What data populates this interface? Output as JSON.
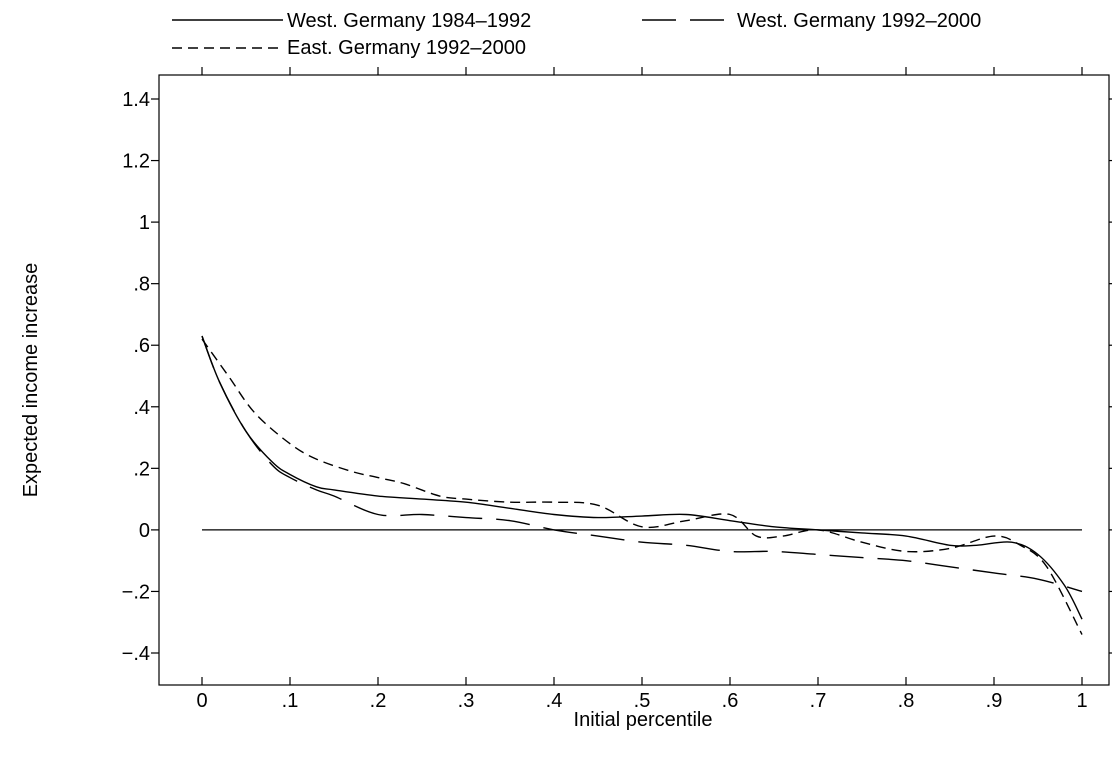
{
  "chart_data": {
    "type": "line",
    "xlabel": "Initial percentile",
    "ylabel": "Expected income increase",
    "xlim": [
      0,
      1
    ],
    "ylim": [
      -0.4,
      1.4
    ],
    "x_ticks": [
      0,
      0.1,
      0.2,
      0.3,
      0.4,
      0.5,
      0.6,
      0.7,
      0.8,
      0.9,
      1
    ],
    "x_tick_labels": [
      "0",
      ".1",
      ".2",
      ".3",
      ".4",
      ".5",
      ".6",
      ".7",
      ".8",
      ".9",
      "1"
    ],
    "y_ticks": [
      -0.4,
      -0.2,
      0,
      0.2,
      0.4,
      0.6,
      0.8,
      1,
      1.2,
      1.4
    ],
    "y_tick_labels": [
      "−.4",
      "−.2",
      "0",
      ".2",
      ".4",
      ".6",
      ".8",
      "1",
      "1.2",
      "1.4"
    ],
    "grid": false,
    "legend_position": "top",
    "reference_line_y": 0,
    "series": [
      {
        "name": "West. Germany 1984–1992",
        "dash": "solid",
        "x": [
          0,
          0.02,
          0.05,
          0.08,
          0.1,
          0.13,
          0.15,
          0.2,
          0.25,
          0.3,
          0.35,
          0.4,
          0.45,
          0.5,
          0.55,
          0.6,
          0.65,
          0.7,
          0.75,
          0.8,
          0.85,
          0.88,
          0.92,
          0.95,
          0.98,
          1.0
        ],
        "y": [
          0.63,
          0.48,
          0.32,
          0.22,
          0.18,
          0.14,
          0.13,
          0.11,
          0.1,
          0.09,
          0.07,
          0.05,
          0.04,
          0.045,
          0.05,
          0.03,
          0.01,
          0.0,
          -0.01,
          -0.02,
          -0.05,
          -0.05,
          -0.04,
          -0.08,
          -0.18,
          -0.29
        ]
      },
      {
        "name": "West. Germany 1992–2000",
        "dash": "long",
        "x": [
          0,
          0.02,
          0.05,
          0.08,
          0.1,
          0.13,
          0.15,
          0.2,
          0.25,
          0.3,
          0.35,
          0.4,
          0.45,
          0.5,
          0.55,
          0.6,
          0.65,
          0.7,
          0.75,
          0.8,
          0.85,
          0.9,
          0.95,
          1.0
        ],
        "y": [
          0.63,
          0.48,
          0.32,
          0.21,
          0.17,
          0.13,
          0.11,
          0.05,
          0.05,
          0.04,
          0.03,
          0.0,
          -0.02,
          -0.04,
          -0.05,
          -0.07,
          -0.07,
          -0.08,
          -0.09,
          -0.1,
          -0.12,
          -0.14,
          -0.16,
          -0.2
        ]
      },
      {
        "name": "East. Germany 1992–2000",
        "dash": "short",
        "x": [
          0,
          0.03,
          0.06,
          0.1,
          0.13,
          0.17,
          0.2,
          0.23,
          0.27,
          0.3,
          0.35,
          0.4,
          0.45,
          0.5,
          0.55,
          0.6,
          0.63,
          0.66,
          0.7,
          0.75,
          0.8,
          0.85,
          0.9,
          0.93,
          0.96,
          1.0
        ],
        "y": [
          0.62,
          0.5,
          0.38,
          0.28,
          0.23,
          0.19,
          0.17,
          0.15,
          0.11,
          0.1,
          0.09,
          0.09,
          0.08,
          0.01,
          0.03,
          0.05,
          -0.02,
          -0.02,
          0.0,
          -0.04,
          -0.07,
          -0.06,
          -0.02,
          -0.05,
          -0.12,
          -0.34
        ]
      }
    ]
  }
}
